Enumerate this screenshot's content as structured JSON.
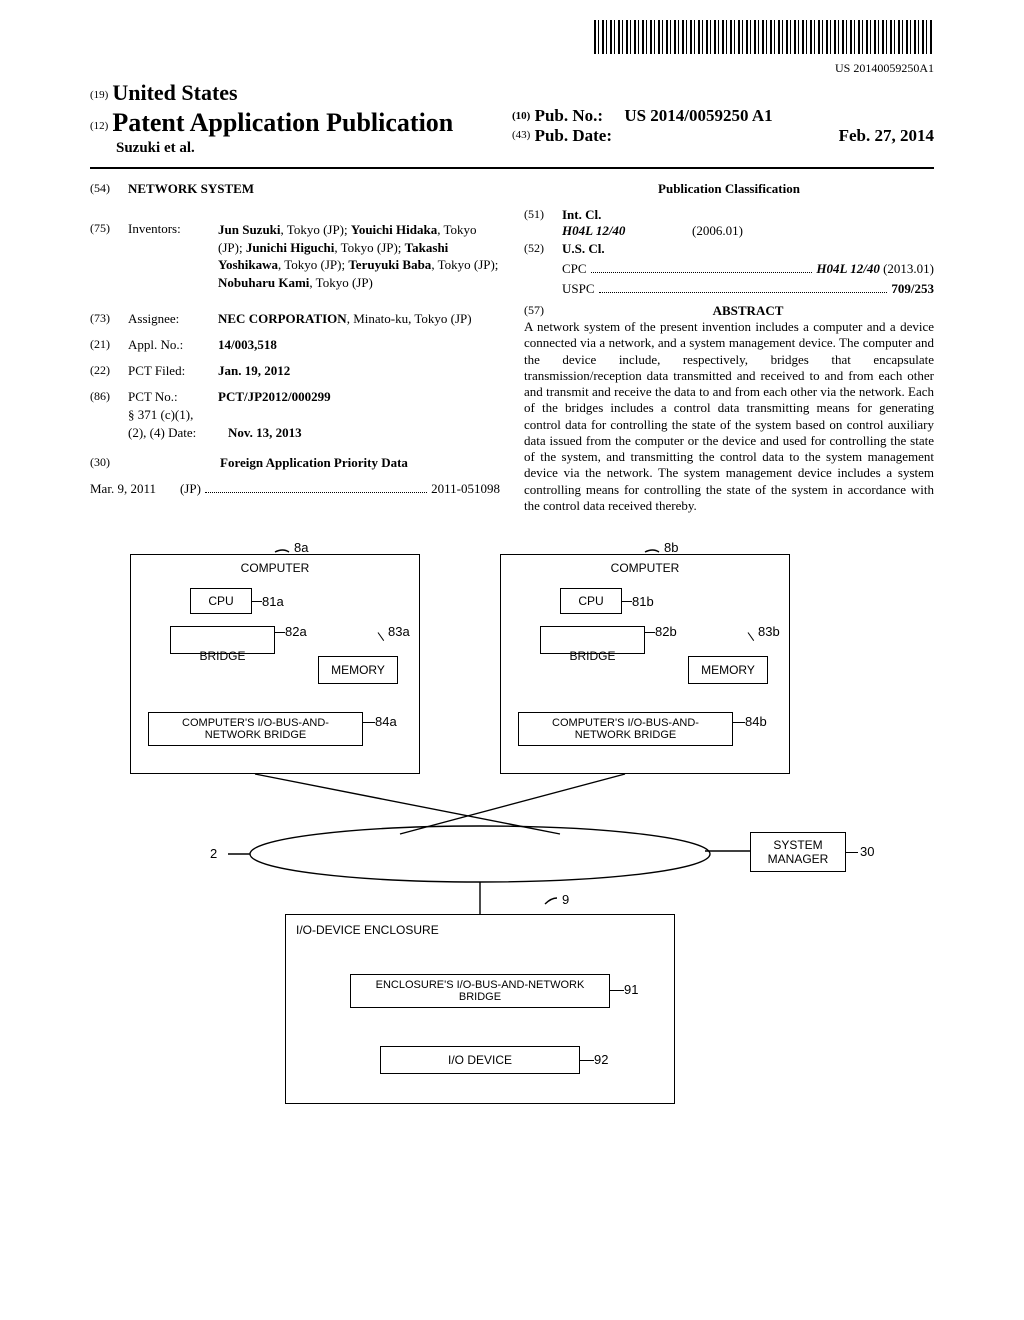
{
  "barcode_text": "US 20140059250A1",
  "header": {
    "country_num": "(19)",
    "country": "United States",
    "type_num": "(12)",
    "type": "Patent Application Publication",
    "applicant": "Suzuki et al.",
    "pub_no_num": "(10)",
    "pub_no_lbl": "Pub. No.:",
    "pub_no": "US 2014/0059250 A1",
    "pub_date_num": "(43)",
    "pub_date_lbl": "Pub. Date:",
    "pub_date": "Feb. 27, 2014"
  },
  "title_num": "(54)",
  "title": "NETWORK SYSTEM",
  "inventors_num": "(75)",
  "inventors_lbl": "Inventors:",
  "inventors_html": "<b>Jun Suzuki</b>, Tokyo (JP); <b>Youichi Hidaka</b>, Tokyo (JP); <b>Junichi Higuchi</b>, Tokyo (JP); <b>Takashi Yoshikawa</b>, Tokyo (JP); <b>Teruyuki Baba</b>, Tokyo (JP); <b>Nobuharu Kami</b>, Tokyo (JP)",
  "assignee_num": "(73)",
  "assignee_lbl": "Assignee:",
  "assignee_html": "<b>NEC CORPORATION</b>, Minato-ku, Tokyo (JP)",
  "appl_num": "(21)",
  "appl_lbl": "Appl. No.:",
  "appl_val": "14/003,518",
  "pct_filed_num": "(22)",
  "pct_filed_lbl": "PCT Filed:",
  "pct_filed_val": "Jan. 19, 2012",
  "pct_no_num": "(86)",
  "pct_no_lbl": "PCT No.:",
  "pct_no_val": "PCT/JP2012/000299",
  "s371_lbl": "§ 371 (c)(1),",
  "s371_lbl2": "(2), (4) Date:",
  "s371_val": "Nov. 13, 2013",
  "foreign_num": "(30)",
  "foreign_head": "Foreign Application Priority Data",
  "foreign_date": "Mar. 9, 2011",
  "foreign_cc": "(JP)",
  "foreign_val": "2011-051098",
  "pubclass_head": "Publication Classification",
  "intcl_num": "(51)",
  "intcl_lbl": "Int. Cl.",
  "intcl_code": "H04L 12/40",
  "intcl_date": "(2006.01)",
  "uscl_num": "(52)",
  "uscl_lbl": "U.S. Cl.",
  "cpc_lbl": "CPC",
  "cpc_val": "H04L 12/40",
  "cpc_date": "(2013.01)",
  "uspc_lbl": "USPC",
  "uspc_val": "709/253",
  "abstract_num": "(57)",
  "abstract_head": "ABSTRACT",
  "abstract_body": "A network system of the present invention includes a computer and a device connected via a network, and a system management device. The computer and the device include, respectively, bridges that encapsulate transmission/reception data transmitted and received to and from each other and transmit and receive the data to and from each other via the network. Each of the bridges includes a control data transmitting means for generating control data for controlling the state of the system based on control auxiliary data issued from the computer or the device and used for controlling the state of the system, and transmitting the control data to the system management device via the network. The system management device includes a system controlling means for controlling the state of the system in accordance with the control data received thereby.",
  "figure": {
    "computer": "COMPUTER",
    "cpu": "CPU",
    "bridge": "BRIDGE",
    "memory": "MEMORY",
    "comp_io_bridge": "COMPUTER'S I/O-BUS-AND-NETWORK BRIDGE",
    "system_manager": "SYSTEM MANAGER",
    "io_enclosure": "I/O-DEVICE ENCLOSURE",
    "enc_io_bridge": "ENCLOSURE'S I/O-BUS-AND-NETWORK BRIDGE",
    "io_device": "I/O DEVICE",
    "refs": {
      "r8a": "8a",
      "r8b": "8b",
      "r81a": "81a",
      "r81b": "81b",
      "r82a": "82a",
      "r82b": "82b",
      "r83a": "83a",
      "r83b": "83b",
      "r84a": "84a",
      "r84b": "84b",
      "r2": "2",
      "r30": "30",
      "r9": "9",
      "r91": "91",
      "r92": "92"
    }
  }
}
